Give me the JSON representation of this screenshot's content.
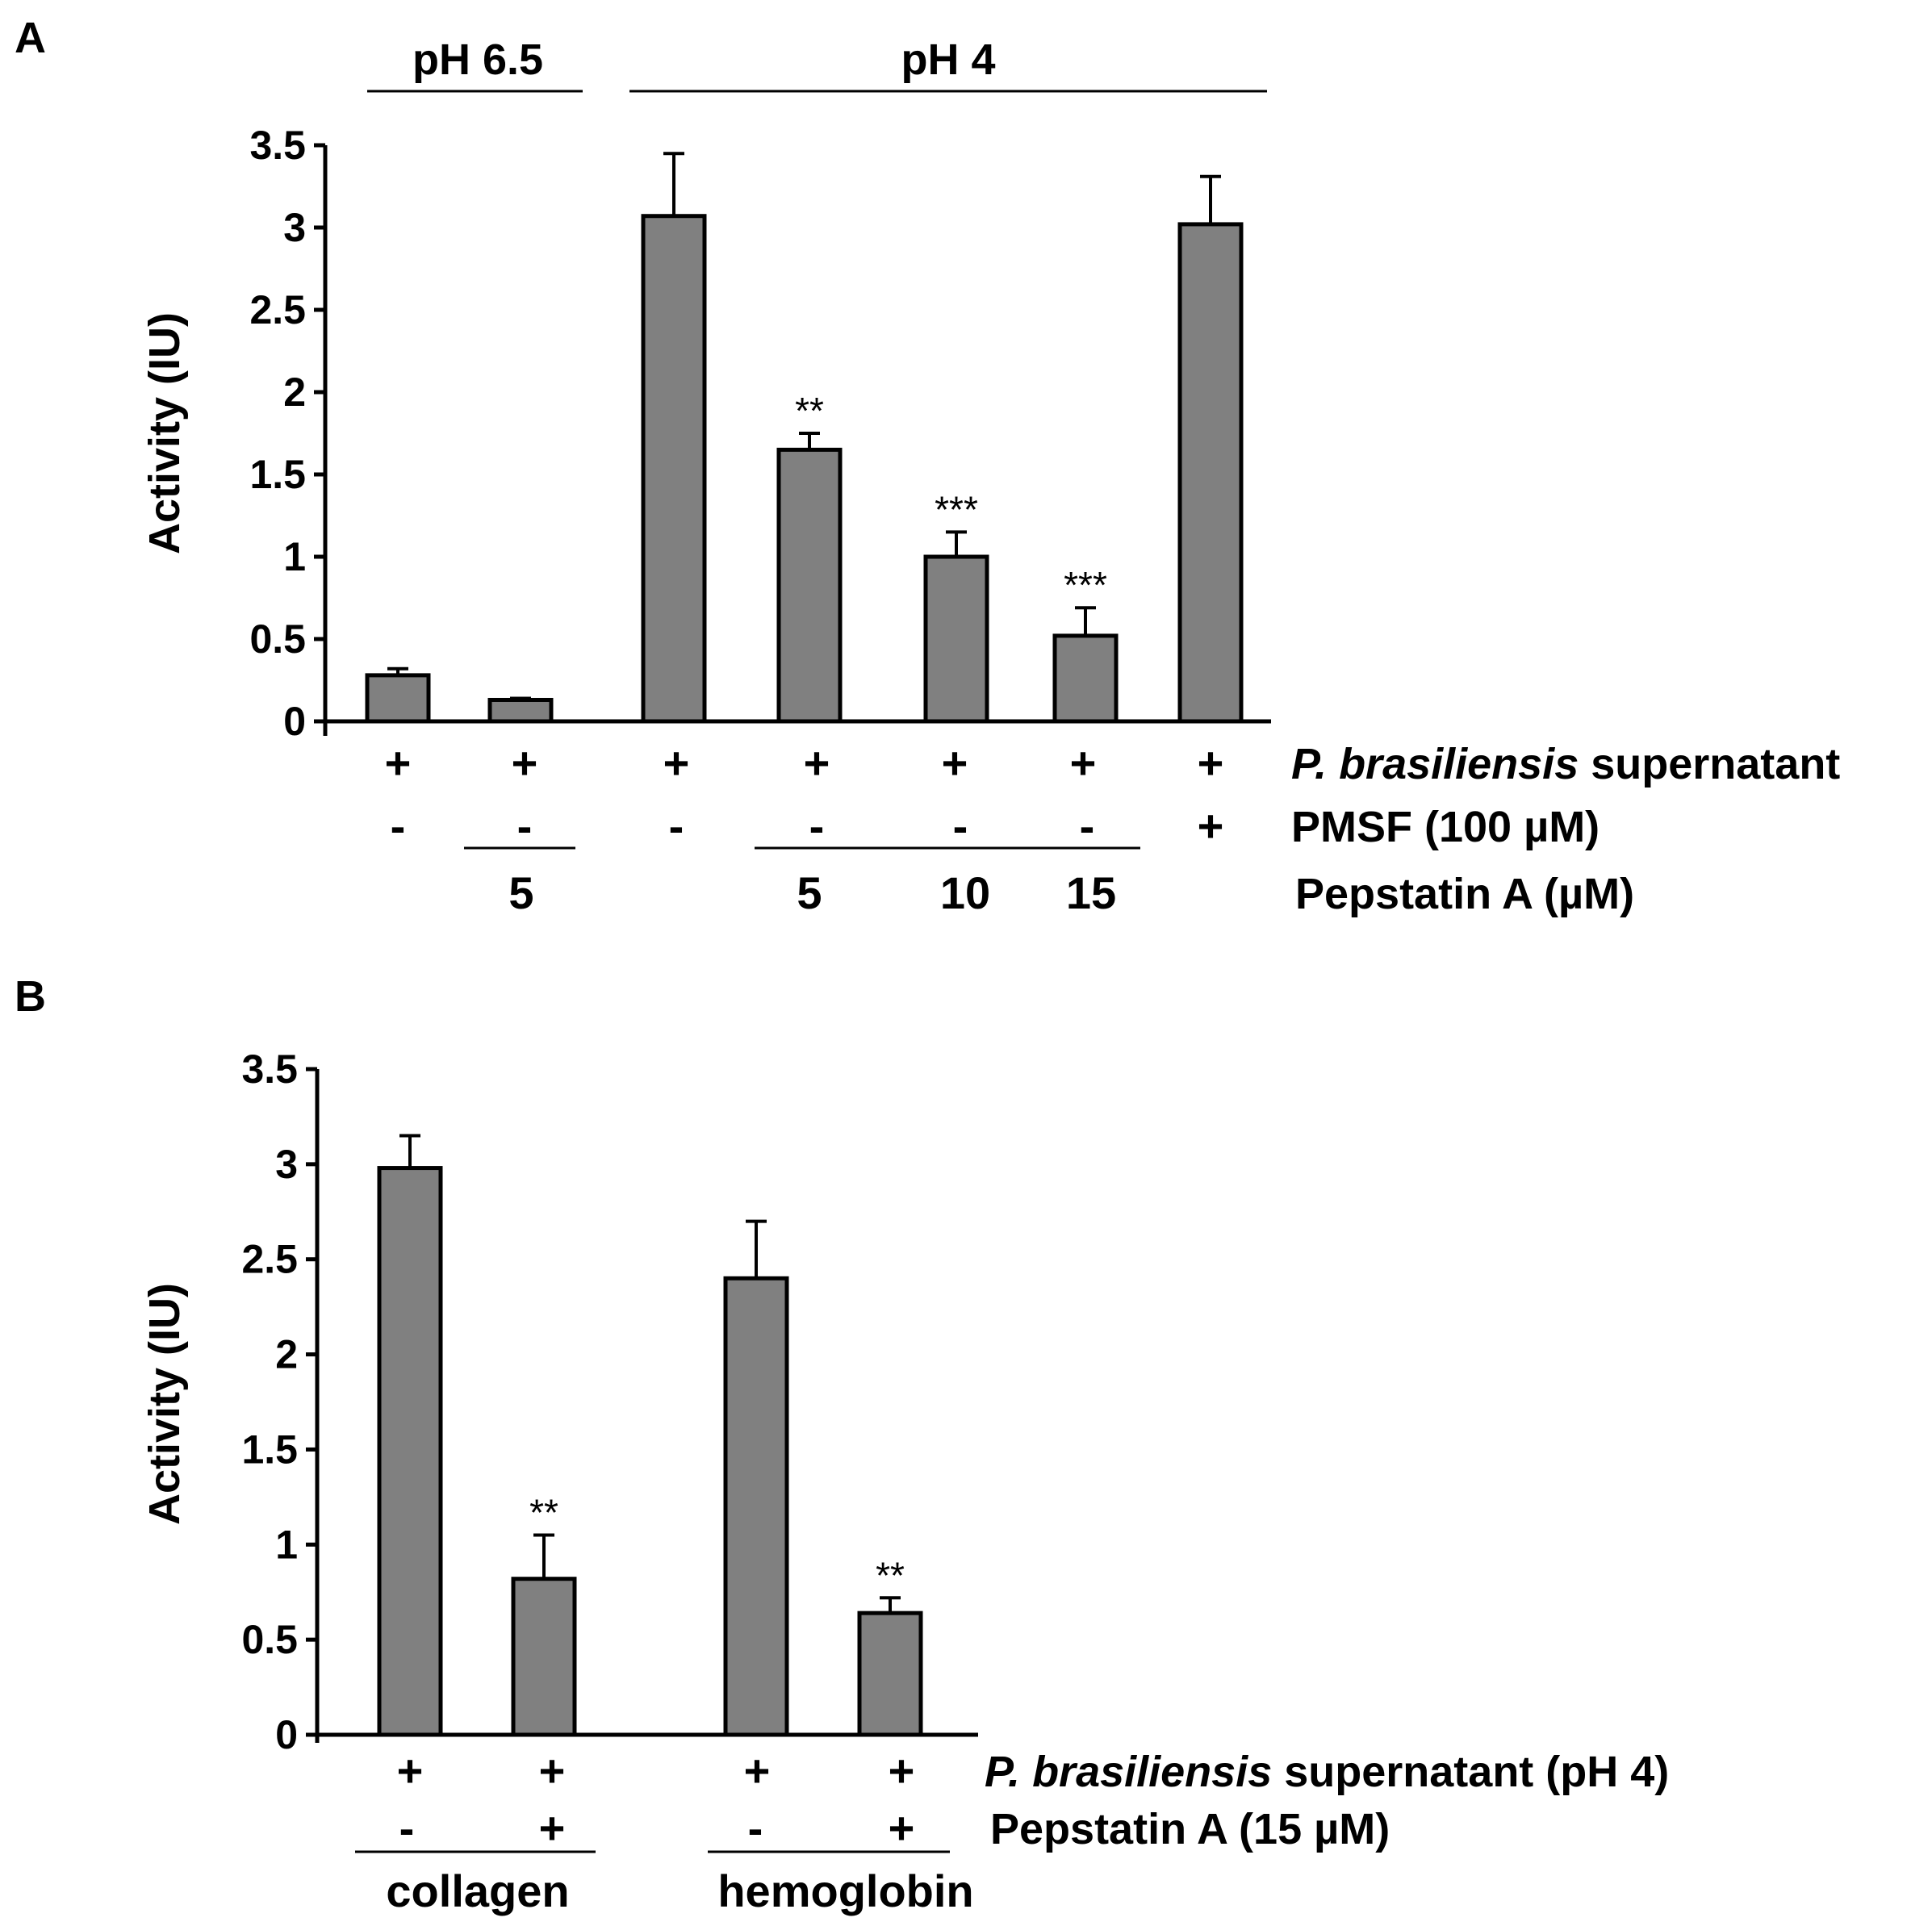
{
  "chart_data": [
    {
      "panel": "A",
      "type": "bar",
      "ylabel": "Activity (IU)",
      "ylim": [
        0,
        3.5
      ],
      "yticks": [
        "0",
        "0.5",
        "1",
        "1.5",
        "2",
        "2.5",
        "3",
        "3.5"
      ],
      "group_labels": [
        "pH 6.5",
        "pH 4"
      ],
      "bar_color": "#808080",
      "values": [
        0.28,
        0.13,
        3.07,
        1.65,
        1.0,
        0.52,
        3.02
      ],
      "errors": [
        0.04,
        0.01,
        0.38,
        0.1,
        0.15,
        0.17,
        0.29
      ],
      "significance": [
        "",
        "",
        "",
        "**",
        "***",
        "***",
        ""
      ],
      "rows": [
        {
          "label_italic": "P. brasiliensis",
          "label_rest": " supernatant",
          "values": [
            "+",
            "+",
            "+",
            "+",
            "+",
            "+",
            "+"
          ]
        },
        {
          "label": "PMSF (100 µM)",
          "values": [
            "-",
            "-",
            "-",
            "-",
            "-",
            "-",
            "+"
          ]
        },
        {
          "label": "Pepstatin A (µM)",
          "values": [
            "",
            "5",
            "",
            "5",
            "10",
            "15",
            ""
          ]
        }
      ]
    },
    {
      "panel": "B",
      "type": "bar",
      "ylabel": "Activity (IU)",
      "ylim": [
        0,
        3.5
      ],
      "yticks": [
        "0",
        "0.5",
        "1",
        "1.5",
        "2",
        "2.5",
        "3",
        "3.5"
      ],
      "bar_color": "#808080",
      "values": [
        2.98,
        0.82,
        2.4,
        0.64
      ],
      "errors": [
        0.17,
        0.23,
        0.3,
        0.08
      ],
      "significance": [
        "",
        "**",
        "",
        "**"
      ],
      "rows": [
        {
          "label_italic": "P. brasiliensis",
          "label_rest": " supernatant (pH 4)",
          "values": [
            "+",
            "+",
            "+",
            "+"
          ]
        },
        {
          "label": "Pepstatin A (15 µM)",
          "values": [
            "-",
            "+",
            "-",
            "+"
          ]
        }
      ],
      "group_labels": [
        "collagen",
        "hemoglobin"
      ]
    }
  ]
}
